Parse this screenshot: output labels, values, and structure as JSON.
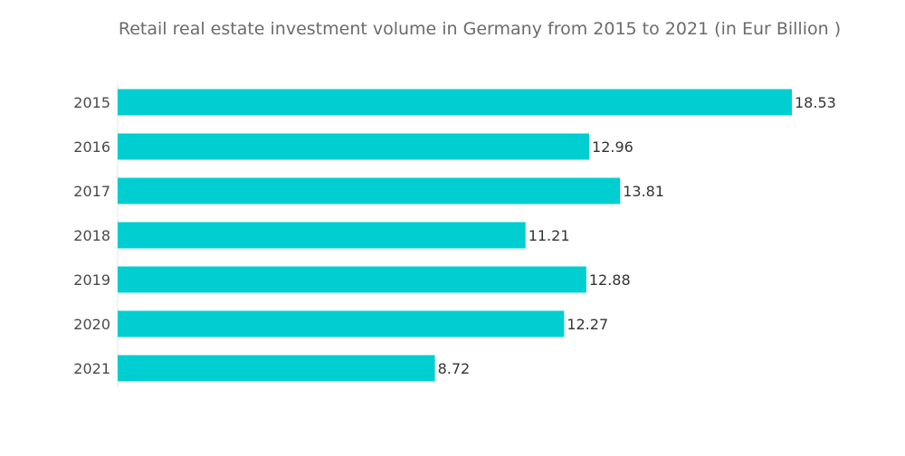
{
  "chart_data": {
    "type": "bar",
    "orientation": "horizontal",
    "title": "Retail real estate investment volume in Germany from 2015 to 2021 (in Eur Billion )",
    "xlabel": "",
    "ylabel": "",
    "categories": [
      "2015",
      "2016",
      "2017",
      "2018",
      "2019",
      "2020",
      "2021"
    ],
    "values": [
      18.53,
      12.96,
      13.81,
      11.21,
      12.88,
      12.27,
      8.72
    ],
    "value_labels": [
      "18.53",
      "12.96",
      "13.81",
      "11.21",
      "12.88",
      "12.27",
      "8.72"
    ],
    "xlim": [
      0,
      18.53
    ],
    "grid": false,
    "legend": "none",
    "bar_color": "#00CED1"
  }
}
